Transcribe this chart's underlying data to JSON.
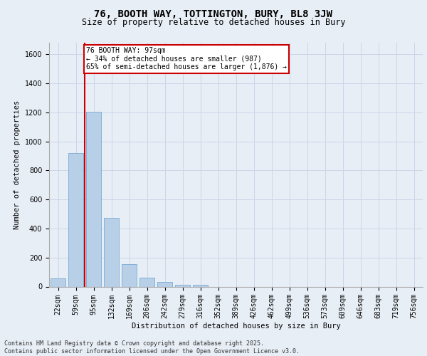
{
  "title1": "76, BOOTH WAY, TOTTINGTON, BURY, BL8 3JW",
  "title2": "Size of property relative to detached houses in Bury",
  "xlabel": "Distribution of detached houses by size in Bury",
  "ylabel": "Number of detached properties",
  "categories": [
    "22sqm",
    "59sqm",
    "95sqm",
    "132sqm",
    "169sqm",
    "206sqm",
    "242sqm",
    "279sqm",
    "316sqm",
    "352sqm",
    "389sqm",
    "426sqm",
    "462sqm",
    "499sqm",
    "536sqm",
    "573sqm",
    "609sqm",
    "646sqm",
    "683sqm",
    "719sqm",
    "756sqm"
  ],
  "values": [
    55,
    920,
    1205,
    475,
    155,
    60,
    30,
    13,
    13,
    0,
    0,
    0,
    0,
    0,
    0,
    0,
    0,
    0,
    0,
    0,
    0
  ],
  "bar_color": "#b8cfe8",
  "bar_edgecolor": "#6aa0cc",
  "grid_color": "#ccd6e8",
  "background_color": "#e8eef6",
  "fig_background_color": "#e8eef6",
  "vline_x": 1.5,
  "vline_color": "#cc0000",
  "annotation_text": "76 BOOTH WAY: 97sqm\n← 34% of detached houses are smaller (987)\n65% of semi-detached houses are larger (1,876) →",
  "annotation_box_facecolor": "#ffffff",
  "annotation_box_edgecolor": "#cc0000",
  "ylim": [
    0,
    1680
  ],
  "yticks": [
    0,
    200,
    400,
    600,
    800,
    1000,
    1200,
    1400,
    1600
  ],
  "footer_line1": "Contains HM Land Registry data © Crown copyright and database right 2025.",
  "footer_line2": "Contains public sector information licensed under the Open Government Licence v3.0.",
  "title1_fontsize": 10,
  "title2_fontsize": 8.5,
  "axis_label_fontsize": 7.5,
  "tick_fontsize": 7,
  "footer_fontsize": 6,
  "annot_fontsize": 7
}
